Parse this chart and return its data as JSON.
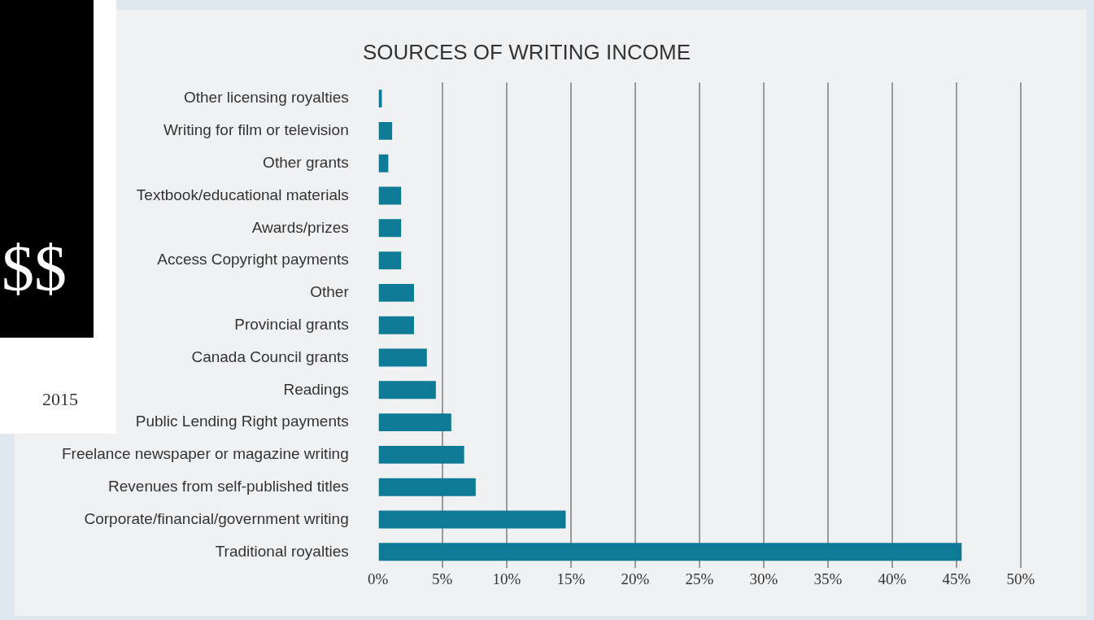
{
  "chart_data": {
    "type": "bar",
    "orientation": "horizontal",
    "title": "SOURCES OF WRITING INCOME",
    "categories": [
      "Other licensing royalties",
      "Writing for film or television",
      "Other grants",
      "Textbook/educational materials",
      "Awards/prizes",
      "Access Copyright payments",
      "Other",
      "Provincial grants",
      "Canada Council grants",
      "Readings",
      "Public Lending Right payments",
      "Freelance newspaper or magazine writing",
      "Revenues from self-published titles",
      "Corporate/financial/government writing",
      "Traditional royalties"
    ],
    "values": [
      0.3,
      1.1,
      0.8,
      1.8,
      1.8,
      1.8,
      2.8,
      2.8,
      3.8,
      4.5,
      5.7,
      6.7,
      7.6,
      14.6,
      45.4
    ],
    "color": "#0f7a96",
    "xlim": [
      0,
      50
    ],
    "xticks": [
      {
        "value": 0,
        "label": "0%"
      },
      {
        "value": 5,
        "label": "5%"
      },
      {
        "value": 10,
        "label": "10%"
      },
      {
        "value": 15,
        "label": "15%"
      },
      {
        "value": 20,
        "label": "20%"
      },
      {
        "value": 25,
        "label": "25%"
      },
      {
        "value": 30,
        "label": "30%"
      },
      {
        "value": 35,
        "label": "35%"
      },
      {
        "value": 40,
        "label": "40%"
      },
      {
        "value": 45,
        "label": "45%"
      },
      {
        "value": 50,
        "label": "50%"
      }
    ],
    "grid": "x",
    "annotations": [
      "$$",
      "2015"
    ]
  }
}
